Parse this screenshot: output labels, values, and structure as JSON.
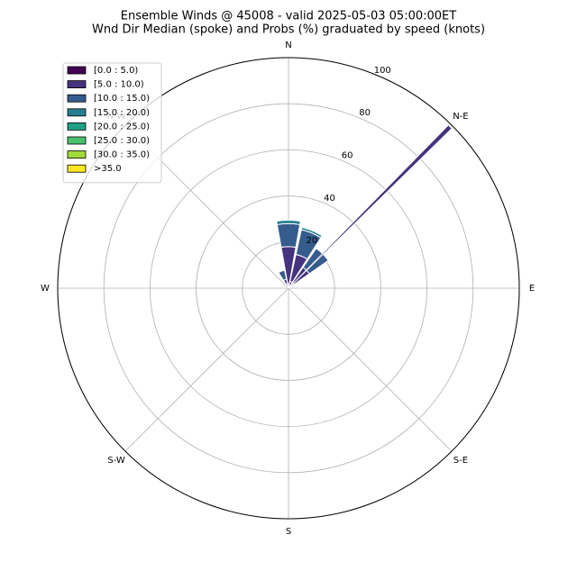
{
  "chart_data": {
    "type": "windrose",
    "title": "Ensemble Winds @ 45008 - valid 2025-05-03 05:00:00ET",
    "subtitle": "Wnd Dir Median (spoke) and Probs (%) graduated by speed (knots)",
    "categories": [
      "N",
      null,
      "N-E",
      null,
      "E",
      null,
      "S-E",
      null,
      "S",
      null,
      "S-W",
      null,
      "W",
      null,
      "N-W",
      null
    ],
    "series": [
      {
        "name": "[0.0 : 5.0)",
        "color": "#440154",
        "values": [
          2,
          3,
          3,
          0,
          0,
          0,
          0,
          0,
          0,
          0,
          0,
          0,
          0,
          0,
          0,
          2
        ]
      },
      {
        "name": "[5.0 : 10.0)",
        "color": "#46337e",
        "values": [
          16,
          12,
          8,
          0,
          0,
          0,
          0,
          0,
          0,
          0,
          0,
          0,
          0,
          0,
          0,
          2
        ]
      },
      {
        "name": "[10.0 : 15.0)",
        "color": "#365c8d",
        "values": [
          10,
          11,
          10,
          0,
          0,
          0,
          0,
          0,
          0,
          0,
          0,
          0,
          0,
          0,
          0,
          4
        ]
      },
      {
        "name": "[15.0 : 20.0)",
        "color": "#277f8e",
        "values": [
          1.5,
          1,
          0,
          0,
          0,
          0,
          0,
          0,
          0,
          0,
          0,
          0,
          0,
          0,
          0,
          0
        ]
      },
      {
        "name": "[20.0 : 25.0)",
        "color": "#1fa187",
        "values": [
          0,
          0,
          0,
          0,
          0,
          0,
          0,
          0,
          0,
          0,
          0,
          0,
          0,
          0,
          0,
          0
        ]
      },
      {
        "name": "[25.0 : 30.0)",
        "color": "#4ac16d",
        "values": [
          0,
          0,
          0,
          0,
          0,
          0,
          0,
          0,
          0,
          0,
          0,
          0,
          0,
          0,
          0,
          0
        ]
      },
      {
        "name": "[30.0 : 35.0)",
        "color": "#a0da39",
        "values": [
          0,
          0,
          0,
          0,
          0,
          0,
          0,
          0,
          0,
          0,
          0,
          0,
          0,
          0,
          0,
          0
        ]
      },
      {
        "name": ">35.0",
        "color": "#fde725",
        "values": [
          0,
          0,
          0,
          0,
          0,
          0,
          0,
          0,
          0,
          0,
          0,
          0,
          0,
          0,
          0,
          0
        ]
      }
    ],
    "spoke": {
      "direction": 45,
      "value": 99,
      "color": "#46337e"
    },
    "ylim": [
      0,
      100
    ],
    "yticks": [
      20,
      40,
      60,
      80,
      100
    ],
    "grid": true,
    "legend": "upper-left"
  }
}
